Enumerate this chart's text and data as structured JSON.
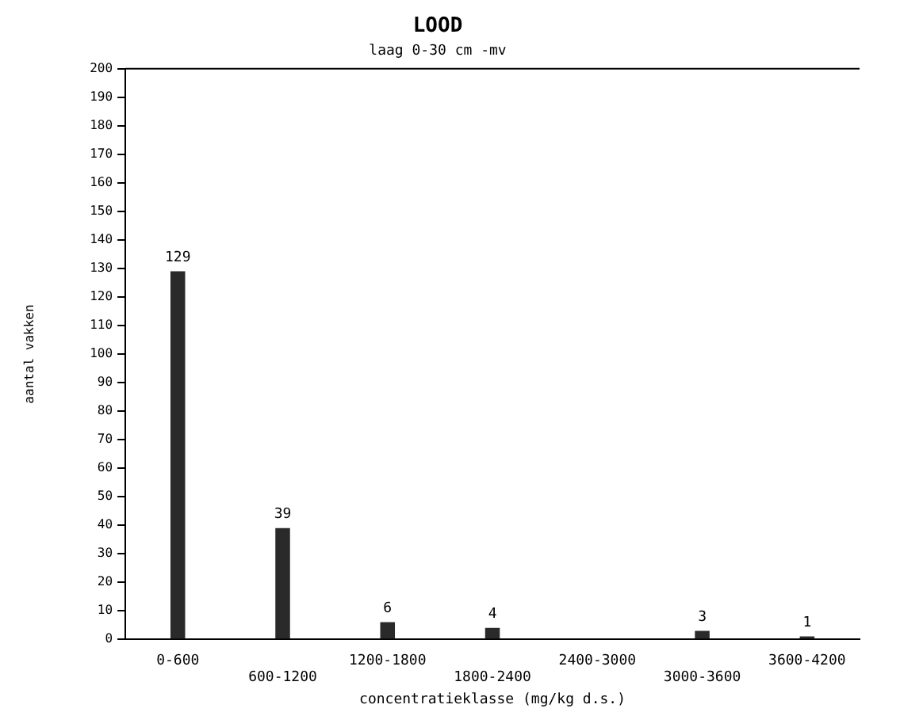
{
  "chart_data": {
    "type": "bar",
    "title": "LOOD",
    "subtitle": "laag 0-30 cm -mv",
    "xlabel": "concentratieklasse (mg/kg d.s.)",
    "ylabel": "aantal vakken",
    "categories": [
      "0-600",
      "600-1200",
      "1200-1800",
      "1800-2400",
      "2400-3000",
      "3000-3600",
      "3600-4200"
    ],
    "values": [
      129,
      39,
      6,
      4,
      0,
      3,
      1
    ],
    "value_labels": [
      "129",
      "39",
      "6",
      "4",
      null,
      "3",
      "1"
    ],
    "color": "#2a2a2a",
    "ylim": [
      0,
      200
    ],
    "yticks": [
      0,
      10,
      20,
      30,
      40,
      50,
      60,
      70,
      80,
      90,
      100,
      110,
      120,
      130,
      140,
      150,
      160,
      170,
      180,
      190,
      200
    ],
    "grid": false,
    "legend": false
  }
}
